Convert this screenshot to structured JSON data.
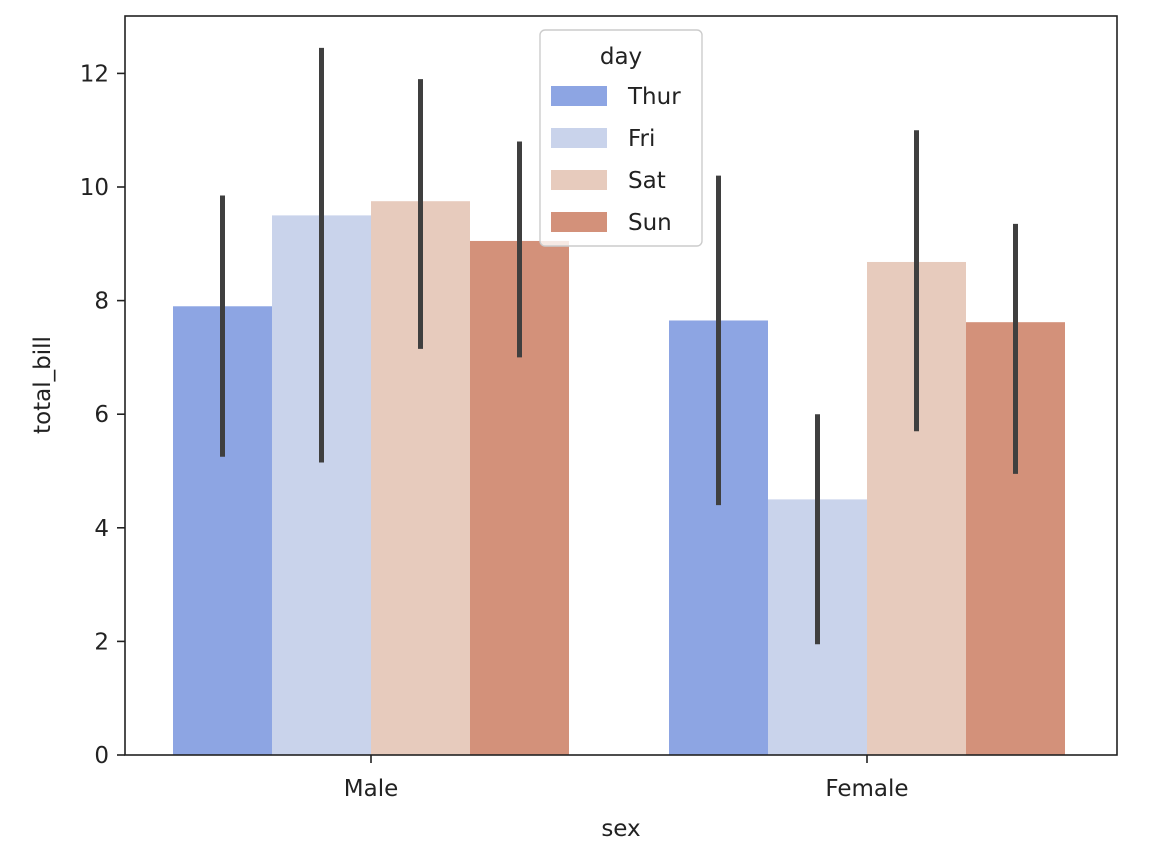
{
  "chart_data": {
    "type": "bar",
    "xlabel": "sex",
    "ylabel": "total_bill",
    "categories": [
      "Male",
      "Female"
    ],
    "ylim": [
      0,
      13
    ],
    "yticks": [
      0,
      2,
      4,
      6,
      8,
      10,
      12
    ],
    "legend": {
      "title": "day",
      "placement": "top-center"
    },
    "grid": false,
    "series": [
      {
        "name": "Thur",
        "color": "#8da5e3",
        "values": [
          7.9,
          7.65
        ],
        "ci": [
          [
            5.25,
            9.85
          ],
          [
            4.4,
            10.2
          ]
        ]
      },
      {
        "name": "Fri",
        "color": "#c9d3eb",
        "values": [
          9.5,
          4.5
        ],
        "ci": [
          [
            5.15,
            12.45
          ],
          [
            1.95,
            6.0
          ]
        ]
      },
      {
        "name": "Sat",
        "color": "#e7cbbd",
        "values": [
          9.75,
          8.68
        ],
        "ci": [
          [
            7.15,
            11.9
          ],
          [
            5.7,
            11.0
          ]
        ]
      },
      {
        "name": "Sun",
        "color": "#d3917a",
        "values": [
          9.05,
          7.62
        ],
        "ci": [
          [
            7.0,
            10.8
          ],
          [
            4.95,
            9.35
          ]
        ]
      }
    ]
  }
}
